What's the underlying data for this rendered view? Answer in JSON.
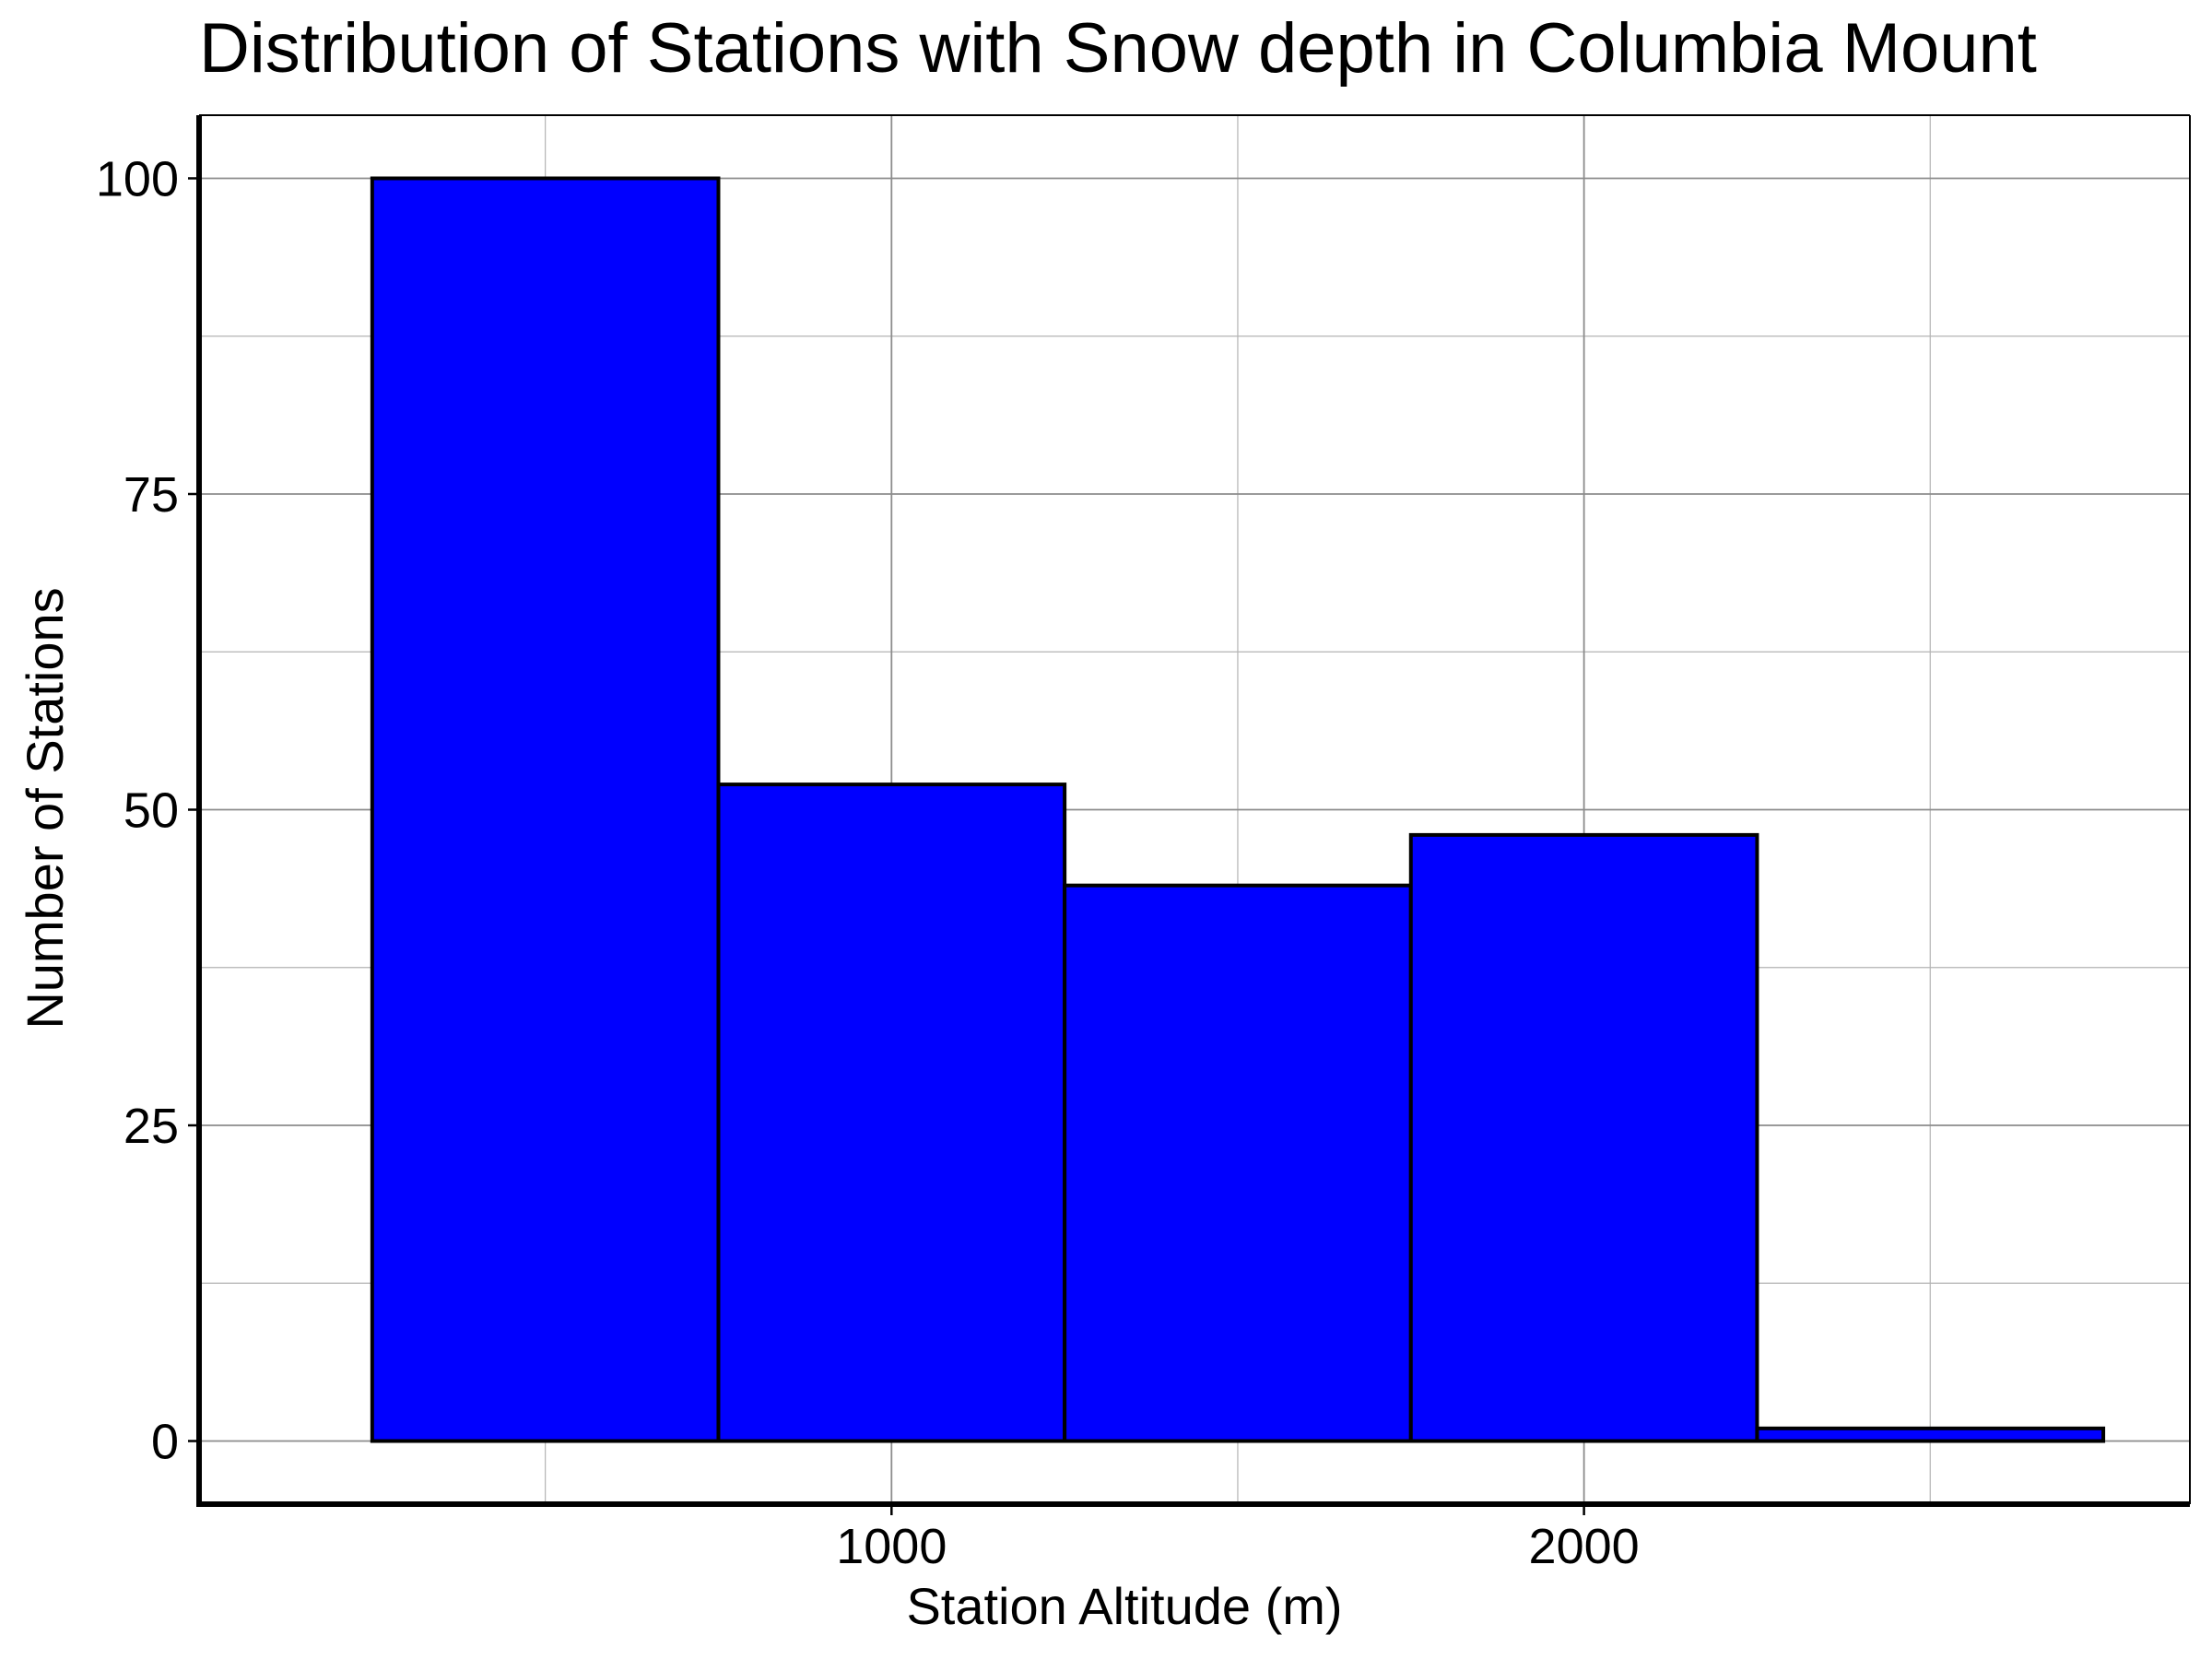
{
  "chart_data": {
    "type": "bar",
    "title": "Distribution of Stations with Snow depth in Columbia Mount",
    "xlabel": "Station Altitude (m)",
    "ylabel": "Number of Stations",
    "bins": [
      {
        "x0": 250,
        "x1": 750,
        "count": 100
      },
      {
        "x0": 750,
        "x1": 1250,
        "count": 52
      },
      {
        "x0": 1250,
        "x1": 1750,
        "count": 44
      },
      {
        "x0": 1750,
        "x1": 2250,
        "count": 48
      },
      {
        "x0": 2250,
        "x1": 2750,
        "count": 1
      }
    ],
    "xlim": [
      0,
      2875
    ],
    "ylim": [
      -5,
      105
    ],
    "xticks": [
      1000,
      2000
    ],
    "xtick_labels": [
      "1000",
      "2000"
    ],
    "yticks": [
      0,
      25,
      50,
      75,
      100
    ],
    "ytick_labels": [
      "0",
      "25",
      "50",
      "75",
      "100"
    ],
    "grid": true,
    "bar_color": "#0000ff",
    "bar_edge_color": "#000000",
    "grid_color": "#b3b3b3"
  }
}
